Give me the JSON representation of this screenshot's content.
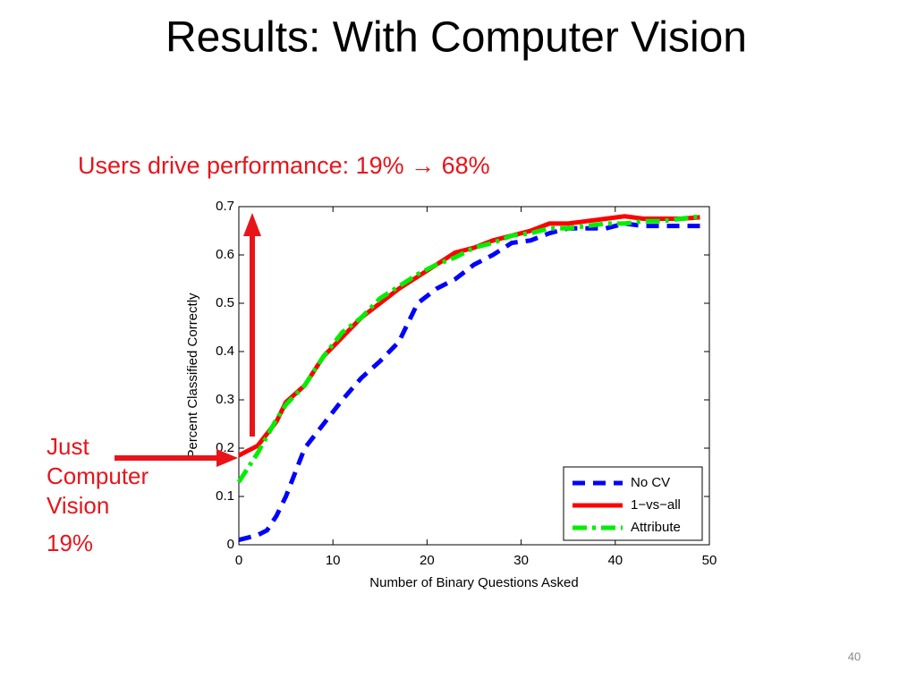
{
  "chart_data": {
    "type": "line",
    "title": "Results: With Computer Vision",
    "subtitle": "Users drive performance: 19% → 68%",
    "side_note": {
      "lines": [
        "Just",
        "Computer",
        "Vision"
      ],
      "value": "19%"
    },
    "page_number": "40",
    "x_label": "Number of Binary Questions Asked",
    "y_label": "Percent Classified Correctly",
    "x": [
      0,
      1,
      2,
      3,
      4,
      5,
      7,
      9,
      11,
      13,
      15,
      17,
      19,
      21,
      23,
      25,
      27,
      29,
      31,
      33,
      35,
      37,
      39,
      41,
      43,
      45,
      47,
      49
    ],
    "series": [
      {
        "name": "No CV",
        "color": "#0000ff",
        "linestyle": "dashed",
        "values": [
          0.01,
          0.015,
          0.02,
          0.03,
          0.06,
          0.1,
          0.2,
          0.25,
          0.3,
          0.345,
          0.38,
          0.42,
          0.5,
          0.53,
          0.55,
          0.58,
          0.6,
          0.625,
          0.63,
          0.645,
          0.655,
          0.655,
          0.655,
          0.665,
          0.66,
          0.66,
          0.66,
          0.66
        ]
      },
      {
        "name": "1−vs−all",
        "color": "#ff0000",
        "linestyle": "solid",
        "values": [
          0.185,
          0.195,
          0.205,
          0.23,
          0.255,
          0.295,
          0.33,
          0.39,
          0.43,
          0.47,
          0.5,
          0.53,
          0.555,
          0.58,
          0.605,
          0.615,
          0.63,
          0.64,
          0.65,
          0.665,
          0.665,
          0.67,
          0.675,
          0.68,
          0.675,
          0.675,
          0.675,
          0.678
        ]
      },
      {
        "name": "Attribute",
        "color": "#00ee00",
        "linestyle": "dashdot",
        "values": [
          0.13,
          0.16,
          0.19,
          0.225,
          0.26,
          0.29,
          0.33,
          0.39,
          0.44,
          0.47,
          0.51,
          0.535,
          0.56,
          0.58,
          0.595,
          0.615,
          0.625,
          0.64,
          0.645,
          0.655,
          0.655,
          0.66,
          0.665,
          0.665,
          0.67,
          0.67,
          0.675,
          0.68
        ]
      }
    ],
    "xlim": [
      0,
      50
    ],
    "xticks": [
      0,
      10,
      20,
      30,
      40,
      50
    ],
    "ylim": [
      0,
      0.7
    ],
    "yticks": [
      0,
      0.1,
      0.2,
      0.3,
      0.4,
      0.5,
      0.6,
      0.7
    ],
    "grid": false,
    "legend": "lower right"
  }
}
